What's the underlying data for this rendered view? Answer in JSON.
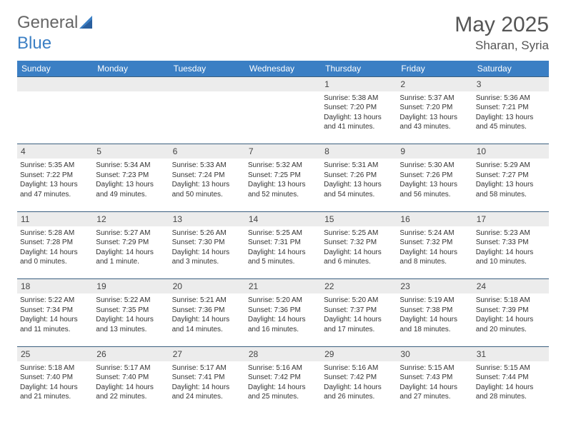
{
  "brand": {
    "name_part1": "General",
    "name_part2": "Blue"
  },
  "title": "May 2025",
  "location": "Sharan, Syria",
  "colors": {
    "header_bg": "#3b7fc4",
    "header_text": "#ffffff",
    "daynum_bg": "#ececec",
    "row_divider": "#3b5f7f",
    "body_text": "#333333",
    "title_text": "#555555",
    "logo_gray": "#666666",
    "logo_blue": "#3b7fc4"
  },
  "typography": {
    "month_title_fontsize": 30,
    "location_fontsize": 17,
    "header_fontsize": 12,
    "daynum_fontsize": 12,
    "info_fontsize": 10
  },
  "columns": [
    "Sunday",
    "Monday",
    "Tuesday",
    "Wednesday",
    "Thursday",
    "Friday",
    "Saturday"
  ],
  "weeks": [
    [
      null,
      null,
      null,
      null,
      {
        "n": "1",
        "sr": "5:38 AM",
        "ss": "7:20 PM",
        "dl": "13 hours and 41 minutes."
      },
      {
        "n": "2",
        "sr": "5:37 AM",
        "ss": "7:20 PM",
        "dl": "13 hours and 43 minutes."
      },
      {
        "n": "3",
        "sr": "5:36 AM",
        "ss": "7:21 PM",
        "dl": "13 hours and 45 minutes."
      }
    ],
    [
      {
        "n": "4",
        "sr": "5:35 AM",
        "ss": "7:22 PM",
        "dl": "13 hours and 47 minutes."
      },
      {
        "n": "5",
        "sr": "5:34 AM",
        "ss": "7:23 PM",
        "dl": "13 hours and 49 minutes."
      },
      {
        "n": "6",
        "sr": "5:33 AM",
        "ss": "7:24 PM",
        "dl": "13 hours and 50 minutes."
      },
      {
        "n": "7",
        "sr": "5:32 AM",
        "ss": "7:25 PM",
        "dl": "13 hours and 52 minutes."
      },
      {
        "n": "8",
        "sr": "5:31 AM",
        "ss": "7:26 PM",
        "dl": "13 hours and 54 minutes."
      },
      {
        "n": "9",
        "sr": "5:30 AM",
        "ss": "7:26 PM",
        "dl": "13 hours and 56 minutes."
      },
      {
        "n": "10",
        "sr": "5:29 AM",
        "ss": "7:27 PM",
        "dl": "13 hours and 58 minutes."
      }
    ],
    [
      {
        "n": "11",
        "sr": "5:28 AM",
        "ss": "7:28 PM",
        "dl": "14 hours and 0 minutes."
      },
      {
        "n": "12",
        "sr": "5:27 AM",
        "ss": "7:29 PM",
        "dl": "14 hours and 1 minute."
      },
      {
        "n": "13",
        "sr": "5:26 AM",
        "ss": "7:30 PM",
        "dl": "14 hours and 3 minutes."
      },
      {
        "n": "14",
        "sr": "5:25 AM",
        "ss": "7:31 PM",
        "dl": "14 hours and 5 minutes."
      },
      {
        "n": "15",
        "sr": "5:25 AM",
        "ss": "7:32 PM",
        "dl": "14 hours and 6 minutes."
      },
      {
        "n": "16",
        "sr": "5:24 AM",
        "ss": "7:32 PM",
        "dl": "14 hours and 8 minutes."
      },
      {
        "n": "17",
        "sr": "5:23 AM",
        "ss": "7:33 PM",
        "dl": "14 hours and 10 minutes."
      }
    ],
    [
      {
        "n": "18",
        "sr": "5:22 AM",
        "ss": "7:34 PM",
        "dl": "14 hours and 11 minutes."
      },
      {
        "n": "19",
        "sr": "5:22 AM",
        "ss": "7:35 PM",
        "dl": "14 hours and 13 minutes."
      },
      {
        "n": "20",
        "sr": "5:21 AM",
        "ss": "7:36 PM",
        "dl": "14 hours and 14 minutes."
      },
      {
        "n": "21",
        "sr": "5:20 AM",
        "ss": "7:36 PM",
        "dl": "14 hours and 16 minutes."
      },
      {
        "n": "22",
        "sr": "5:20 AM",
        "ss": "7:37 PM",
        "dl": "14 hours and 17 minutes."
      },
      {
        "n": "23",
        "sr": "5:19 AM",
        "ss": "7:38 PM",
        "dl": "14 hours and 18 minutes."
      },
      {
        "n": "24",
        "sr": "5:18 AM",
        "ss": "7:39 PM",
        "dl": "14 hours and 20 minutes."
      }
    ],
    [
      {
        "n": "25",
        "sr": "5:18 AM",
        "ss": "7:40 PM",
        "dl": "14 hours and 21 minutes."
      },
      {
        "n": "26",
        "sr": "5:17 AM",
        "ss": "7:40 PM",
        "dl": "14 hours and 22 minutes."
      },
      {
        "n": "27",
        "sr": "5:17 AM",
        "ss": "7:41 PM",
        "dl": "14 hours and 24 minutes."
      },
      {
        "n": "28",
        "sr": "5:16 AM",
        "ss": "7:42 PM",
        "dl": "14 hours and 25 minutes."
      },
      {
        "n": "29",
        "sr": "5:16 AM",
        "ss": "7:42 PM",
        "dl": "14 hours and 26 minutes."
      },
      {
        "n": "30",
        "sr": "5:15 AM",
        "ss": "7:43 PM",
        "dl": "14 hours and 27 minutes."
      },
      {
        "n": "31",
        "sr": "5:15 AM",
        "ss": "7:44 PM",
        "dl": "14 hours and 28 minutes."
      }
    ]
  ],
  "labels": {
    "sunrise": "Sunrise:",
    "sunset": "Sunset:",
    "daylight": "Daylight:"
  }
}
